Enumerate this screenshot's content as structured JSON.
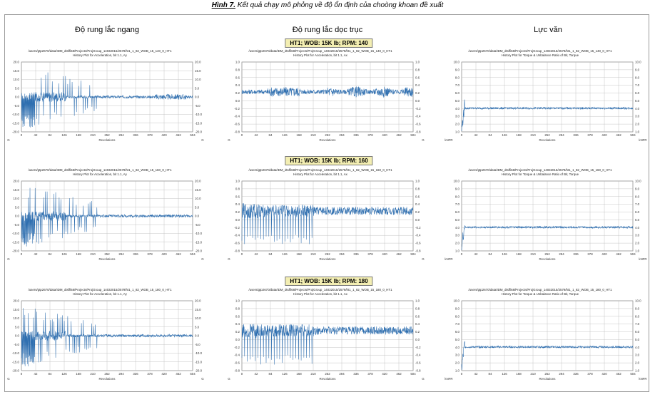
{
  "caption": {
    "label": "Hình 7.",
    "text": " Kết quả chạy mô phỏng về độ ổn định của choòng khoan đề xuất"
  },
  "columns": [
    "Độ rung lắc ngang",
    "Độ rung lắc dọc trục",
    "Lực văn"
  ],
  "rpm_labels": [
    "HT1; WOB: 15K lb; RPM: 140",
    "HT1; WOB: 15K lb; RPM: 160",
    "HT1; WOB: 15K lb; RPM: 180"
  ],
  "colors": {
    "signal": "#2f6fb0",
    "grid": "#b8b8b8",
    "frame": "#9a9a9a",
    "banner": "#f3eeb2"
  },
  "chart_data": [
    {
      "type": "line",
      "col": 0,
      "row": 0,
      "xlabel": "Revolutions",
      "ylabel": "G",
      "path_title": "/users/gtp2670/data/IDM_dtsffi68/Projects/ProjGroup_14032015/2579/ht1_1_82_WOB_15_140_0_HT1",
      "plot_title": "History Plot for Acceleration, bit 1.1, Ay",
      "ylim": [
        -20,
        20
      ],
      "yticks": [
        "20.0",
        "15.0",
        "10.0",
        "5.0",
        "0.0",
        "-5.0",
        "-10.0",
        "-15.0",
        "-20.0"
      ],
      "y2ticks": [
        "20.0",
        "15.0",
        "10.0",
        "5.0",
        "0.0",
        "-5.0",
        "-10.0",
        "-15.0",
        "-20.0"
      ],
      "xticks": [
        "0",
        "42",
        "84",
        "126",
        "168",
        "210",
        "252",
        "294",
        "336",
        "378",
        "420",
        "462",
        "504"
      ],
      "profile": "lateral"
    },
    {
      "type": "line",
      "col": 1,
      "row": 0,
      "xlabel": "Revolutions",
      "ylabel": "G",
      "path_title": "/users/gtp2670/data/IDM_dtsffi68/Projects/ProjGroup_14032015/2579/ht1_1_82_WOB_15_140_0_HT1",
      "plot_title": "History Plot for Acceleration, bit 1.1, Ax",
      "ylim": [
        -0.8,
        1.0
      ],
      "yticks": [
        "1.0",
        "0.8",
        "0.6",
        "0.4",
        "0.2",
        "0.0",
        "-0.2",
        "-0.4",
        "-0.6",
        "-0.8"
      ],
      "y2ticks": [
        "1.0",
        "0.8",
        "0.6",
        "0.4",
        "0.2",
        "0.0",
        "-0.2",
        "-0.4",
        "-0.6",
        "-0.8"
      ],
      "xticks": [
        "0",
        "42",
        "84",
        "126",
        "168",
        "210",
        "252",
        "294",
        "336",
        "378",
        "420",
        "462",
        "504"
      ],
      "profile": "axial"
    },
    {
      "type": "line",
      "col": 2,
      "row": 0,
      "xlabel": "Revolutions",
      "ylabel": "kNFR",
      "path_title": "/users/gtp2670/data/IDM_dtsffi68/Projects/ProjGroup_14032015/2579/ht1_1_82_WOB_15_140_0_HT1",
      "plot_title": "History Plot for Torque & Unbalance Ratio of Bit, Torque",
      "ylim": [
        1,
        10
      ],
      "yticks": [
        "10.0",
        "9.0",
        "8.0",
        "7.0",
        "6.0",
        "5.0",
        "4.0",
        "3.0",
        "2.0",
        "1.0"
      ],
      "y2ticks": [
        "10.0",
        "9.0",
        "8.0",
        "7.0",
        "6.0",
        "5.0",
        "4.0",
        "3.0",
        "2.0",
        "1.0"
      ],
      "xticks": [
        "0",
        "42",
        "84",
        "126",
        "168",
        "210",
        "252",
        "294",
        "336",
        "378",
        "420",
        "462",
        "504"
      ],
      "profile": "torque"
    },
    {
      "type": "line",
      "col": 0,
      "row": 1,
      "xlabel": "Revolutions",
      "ylabel": "G",
      "path_title": "/users/gtp2670/data/IDM_dtsffi68/Projects/ProjGroup_14032015/2579/ht1_1_82_WOB_15_160_0_HT1",
      "plot_title": "History Plot for Acceleration, bit 1.1, Ay",
      "ylim": [
        -20,
        20
      ],
      "yticks": [
        "20.0",
        "15.0",
        "10.0",
        "5.0",
        "0.0",
        "-5.0",
        "-10.0",
        "-15.0",
        "-20.0"
      ],
      "y2ticks": [
        "20.0",
        "15.0",
        "10.0",
        "5.0",
        "0.0",
        "-5.0",
        "-10.0",
        "-15.0",
        "-20.0"
      ],
      "xticks": [
        "0",
        "42",
        "84",
        "126",
        "168",
        "210",
        "252",
        "294",
        "336",
        "378",
        "420",
        "462",
        "504"
      ],
      "profile": "lateral2"
    },
    {
      "type": "line",
      "col": 1,
      "row": 1,
      "xlabel": "Revolutions",
      "ylabel": "G",
      "path_title": "/users/gtp2670/data/IDM_dtsffi68/Projects/ProjGroup_14032015/2579/ht1_1_82_WOB_15_160_0_HT1",
      "plot_title": "History Plot for Acceleration, bit 1.1, Ax",
      "ylim": [
        -0.8,
        1.0
      ],
      "yticks": [
        "1.0",
        "0.8",
        "0.6",
        "0.4",
        "0.2",
        "0.0",
        "-0.2",
        "-0.4",
        "-0.6",
        "-0.8"
      ],
      "y2ticks": [
        "1.0",
        "0.8",
        "0.6",
        "0.4",
        "0.2",
        "0.0",
        "-0.2",
        "-0.4",
        "-0.6",
        "-0.8"
      ],
      "xticks": [
        "0",
        "42",
        "84",
        "126",
        "168",
        "210",
        "252",
        "294",
        "336",
        "378",
        "420",
        "462",
        "504"
      ],
      "profile": "axial2"
    },
    {
      "type": "line",
      "col": 2,
      "row": 1,
      "xlabel": "Revolutions",
      "ylabel": "kNFR",
      "path_title": "/users/gtp2670/data/IDM_dtsffi68/Projects/ProjGroup_14032015/2579/ht1_1_82_WOB_15_160_0_HT1",
      "plot_title": "History Plot for Torque & Unbalance Ratio of Bit, Torque",
      "ylim": [
        1,
        10
      ],
      "yticks": [
        "10.0",
        "9.0",
        "8.0",
        "7.0",
        "6.0",
        "5.0",
        "4.0",
        "3.0",
        "2.0",
        "1.0"
      ],
      "y2ticks": [
        "10.0",
        "9.0",
        "8.0",
        "7.0",
        "6.0",
        "5.0",
        "4.0",
        "3.0",
        "2.0",
        "1.0"
      ],
      "xticks": [
        "0",
        "42",
        "84",
        "126",
        "168",
        "210",
        "252",
        "294",
        "336",
        "378",
        "420",
        "462",
        "504"
      ],
      "profile": "torque2"
    },
    {
      "type": "line",
      "col": 0,
      "row": 2,
      "xlabel": "Revolutions",
      "ylabel": "G",
      "path_title": "/users/gtp2670/data/IDM_dtsffi68/Projects/ProjGroup_14032015/2579/ht1_1_82_WOB_15_180_0_HT1",
      "plot_title": "History Plot for Acceleration, bit 1.1, Ay",
      "ylim": [
        -20,
        20
      ],
      "yticks": [
        "20.0",
        "15.0",
        "10.0",
        "5.0",
        "0.0",
        "-5.0",
        "-10.0",
        "-15.0",
        "-20.0"
      ],
      "y2ticks": [
        "20.0",
        "15.0",
        "10.0",
        "5.0",
        "0.0",
        "-5.0",
        "-10.0",
        "-15.0",
        "-20.0"
      ],
      "xticks": [
        "0",
        "42",
        "84",
        "126",
        "168",
        "210",
        "252",
        "294",
        "336",
        "378",
        "420",
        "462",
        "504"
      ],
      "profile": "lateral3"
    },
    {
      "type": "line",
      "col": 1,
      "row": 2,
      "xlabel": "Revolutions",
      "ylabel": "G",
      "path_title": "/users/gtp2670/data/IDM_dtsffi68/Projects/ProjGroup_14032015/2579/ht1_1_82_WOB_15_180_0_HT1",
      "plot_title": "History Plot for Acceleration, bit 1.1, Ax",
      "ylim": [
        -0.8,
        1.0
      ],
      "yticks": [
        "1.0",
        "0.8",
        "0.6",
        "0.4",
        "0.2",
        "0.0",
        "-0.2",
        "-0.4",
        "-0.6",
        "-0.8"
      ],
      "y2ticks": [
        "1.0",
        "0.8",
        "0.6",
        "0.4",
        "0.2",
        "0.0",
        "-0.2",
        "-0.4",
        "-0.6",
        "-0.8"
      ],
      "xticks": [
        "0",
        "42",
        "84",
        "126",
        "168",
        "210",
        "252",
        "294",
        "336",
        "378",
        "420",
        "462",
        "504"
      ],
      "profile": "axial3"
    },
    {
      "type": "line",
      "col": 2,
      "row": 2,
      "xlabel": "Revolutions",
      "ylabel": "kNFR",
      "path_title": "/users/gtp2670/data/IDM_dtsffi68/Projects/ProjGroup_14032015/2579/ht1_1_82_WOB_15_180_0_HT1",
      "plot_title": "History Plot for Torque & Unbalance Ratio of Bit, Torque",
      "ylim": [
        1,
        10
      ],
      "yticks": [
        "10.0",
        "9.0",
        "8.0",
        "7.0",
        "6.0",
        "5.0",
        "4.0",
        "3.0",
        "2.0",
        "1.0"
      ],
      "y2ticks": [
        "10.0",
        "9.0",
        "8.0",
        "7.0",
        "6.0",
        "5.0",
        "4.0",
        "3.0",
        "2.0",
        "1.0"
      ],
      "xticks": [
        "0",
        "42",
        "84",
        "126",
        "168",
        "210",
        "252",
        "294",
        "336",
        "378",
        "420",
        "462",
        "504"
      ],
      "profile": "torque3"
    }
  ]
}
